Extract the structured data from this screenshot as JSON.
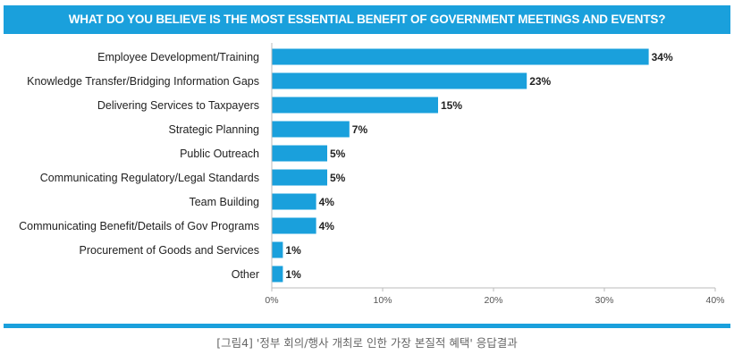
{
  "title": "WHAT DO YOU BELIEVE IS THE MOST ESSENTIAL BENEFIT OF GOVERNMENT MEETINGS AND EVENTS?",
  "caption": "[그림4] '정부 회의/행사 개최로 인한 가장 본질적 혜택' 응답결과",
  "colors": {
    "accent": "#1aa0dc",
    "bar": "#1aa0dc",
    "axis": "#bbbbbb"
  },
  "chart_data": {
    "type": "bar",
    "orientation": "horizontal",
    "title": "WHAT DO YOU BELIEVE IS THE MOST ESSENTIAL BENEFIT OF GOVERNMENT MEETINGS AND EVENTS?",
    "categories": [
      "Employee Development/Training",
      "Knowledge Transfer/Bridging Information Gaps",
      "Delivering Services to Taxpayers",
      "Strategic Planning",
      "Public Outreach",
      "Communicating Regulatory/Legal Standards",
      "Team Building",
      "Communicating Benefit/Details of Gov Programs",
      "Procurement of Goods and Services",
      "Other"
    ],
    "values": [
      34,
      23,
      15,
      7,
      5,
      5,
      4,
      4,
      1,
      1
    ],
    "value_labels": [
      "34%",
      "23%",
      "15%",
      "7%",
      "5%",
      "5%",
      "4%",
      "4%",
      "1%",
      "1%"
    ],
    "xlim": [
      0,
      40
    ],
    "x_ticks": [
      0,
      10,
      20,
      30,
      40
    ],
    "x_tick_labels": [
      "0%",
      "10%",
      "20%",
      "30%",
      "40%"
    ],
    "xlabel": "",
    "ylabel": "",
    "grid": false,
    "legend": "none"
  }
}
